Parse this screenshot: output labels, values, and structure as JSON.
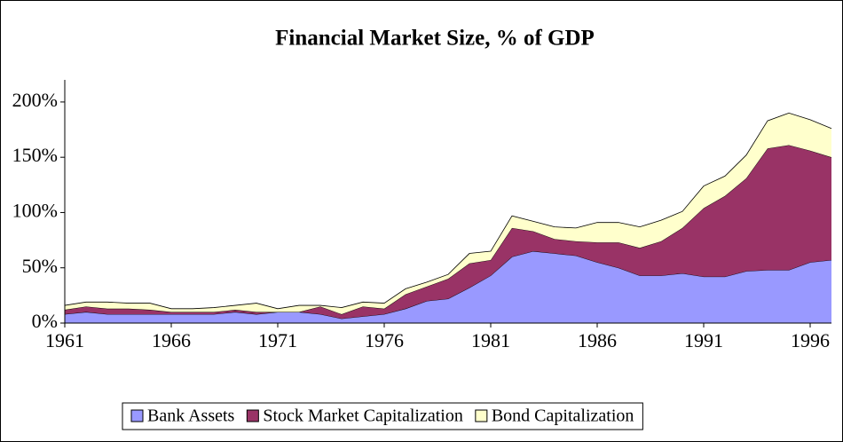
{
  "chart_data": {
    "type": "stacked_area",
    "title": "Financial Market Size, % of GDP",
    "x": [
      1961,
      1962,
      1963,
      1964,
      1965,
      1966,
      1967,
      1968,
      1969,
      1970,
      1971,
      1972,
      1973,
      1974,
      1975,
      1976,
      1977,
      1978,
      1979,
      1980,
      1981,
      1982,
      1983,
      1984,
      1985,
      1986,
      1987,
      1988,
      1989,
      1990,
      1991,
      1992,
      1993,
      1994,
      1995,
      1996,
      1997
    ],
    "series": [
      {
        "name": "Bank Assets",
        "color": "#9999ff",
        "values": [
          8,
          10,
          8,
          8,
          8,
          8,
          8,
          8,
          10,
          8,
          10,
          10,
          8,
          4,
          6,
          8,
          13,
          20,
          22,
          32,
          43,
          60,
          65,
          63,
          61,
          55,
          50,
          43,
          43,
          45,
          42,
          42,
          47,
          48,
          48,
          55,
          57
        ]
      },
      {
        "name": "Stock Market Capitalization",
        "color": "#993366",
        "values": [
          4,
          5,
          5,
          5,
          4,
          2,
          2,
          2,
          2,
          2,
          0,
          0,
          7,
          4,
          9,
          5,
          13,
          13,
          18,
          22,
          14,
          26,
          18,
          13,
          13,
          18,
          23,
          25,
          31,
          41,
          62,
          73,
          84,
          110,
          113,
          101,
          93
        ]
      },
      {
        "name": "Bond Capitalization",
        "color": "#ffffcc",
        "values": [
          4,
          4,
          6,
          5,
          6,
          3,
          3,
          4,
          4,
          8,
          3,
          6,
          1,
          6,
          4,
          5,
          5,
          4,
          4,
          9,
          8,
          11,
          9,
          11,
          12,
          18,
          18,
          19,
          19,
          15,
          20,
          18,
          21,
          25,
          29,
          28,
          26
        ]
      }
    ],
    "xlim": [
      1961,
      1997
    ],
    "xticks": [
      1961,
      1966,
      1971,
      1976,
      1981,
      1986,
      1991,
      1996
    ],
    "ylim": [
      0,
      220
    ],
    "yticks": [
      {
        "value": 0,
        "label": "0%"
      },
      {
        "value": 50,
        "label": "50%"
      },
      {
        "value": 100,
        "label": "100%"
      },
      {
        "value": 150,
        "label": "150%"
      },
      {
        "value": 200,
        "label": "200%"
      }
    ],
    "grid": false,
    "legend": "bottom"
  }
}
